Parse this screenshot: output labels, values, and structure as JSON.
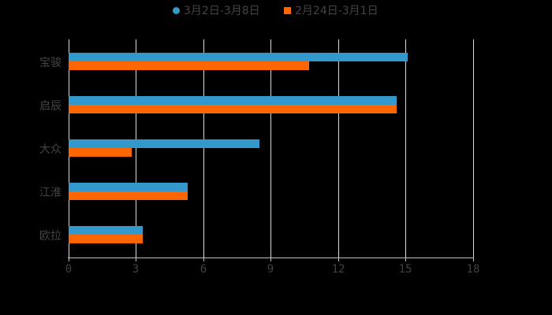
{
  "chart_data": {
    "type": "bar",
    "orientation": "horizontal",
    "title": "",
    "xlabel": "",
    "ylabel": "",
    "categories": [
      "宝骏",
      "启辰",
      "大众",
      "江淮",
      "欧拉"
    ],
    "series": [
      {
        "name": "3月2日-3月8日",
        "color": "#3399cc",
        "marker": "circle",
        "values": [
          15.1,
          14.6,
          8.5,
          5.3,
          3.3
        ]
      },
      {
        "name": "2月24日-3月1日",
        "color": "#ff6600",
        "marker": "square",
        "values": [
          10.7,
          14.6,
          2.8,
          5.3,
          3.3
        ]
      }
    ],
    "xlim": [
      0,
      18
    ],
    "x_ticks": [
      "0",
      "3",
      "6",
      "9",
      "12",
      "15",
      "18"
    ],
    "grid": true,
    "legend_position": "top",
    "background": "#000000"
  },
  "legend": {
    "items": [
      {
        "label": "3月2日-3月8日",
        "color": "#3399cc"
      },
      {
        "label": "2月24日-3月1日",
        "color": "#ff6600"
      }
    ]
  }
}
